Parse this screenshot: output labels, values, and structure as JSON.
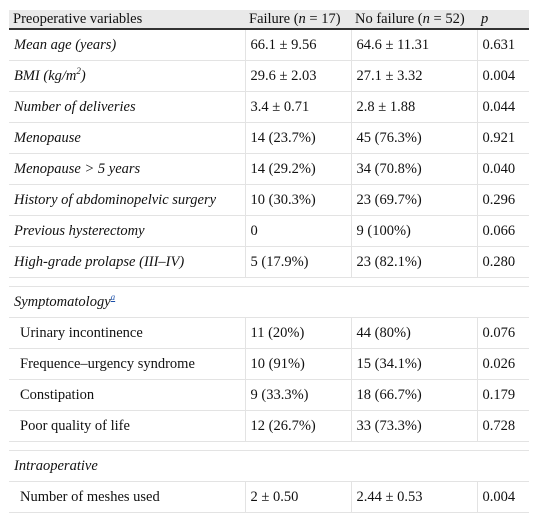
{
  "table": {
    "headers": [
      "Preoperative variables",
      "Failure (",
      "n",
      " = 17)",
      "No failure (",
      "n",
      " = 52)",
      "p"
    ],
    "rows": [
      {
        "label": "Mean age (years)",
        "failure": "66.1 ± 9.56",
        "no_failure": "64.6 ± 11.31",
        "p": "0.631"
      },
      {
        "label": "BMI (kg/m",
        "label_sup": "2",
        "label_end": ")",
        "failure": "29.6 ± 2.03",
        "no_failure": "27.1 ± 3.32",
        "p": "0.004"
      },
      {
        "label": "Number of deliveries",
        "failure": "3.4 ± 0.71",
        "no_failure": "2.8 ± 1.88",
        "p": "0.044"
      },
      {
        "label": "Menopause",
        "failure": "14 (23.7%)",
        "no_failure": "45 (76.3%)",
        "p": "0.921"
      },
      {
        "label": "Menopause > 5 years",
        "failure": "14 (29.2%)",
        "no_failure": "34 (70.8%)",
        "p": "0.040"
      },
      {
        "label": "History of abdominopelvic surgery",
        "failure": "10 (30.3%)",
        "no_failure": "23 (69.7%)",
        "p": "0.296"
      },
      {
        "label": "Previous hysterectomy",
        "failure": "0",
        "no_failure": "9 (100%)",
        "p": "0.066"
      },
      {
        "label": "High-grade prolapse (III–IV)",
        "failure": "5 (17.9%)",
        "no_failure": "23 (82.1%)",
        "p": "0.280"
      }
    ],
    "section_symptomatology": "Symptomatology",
    "section_symptomatology_note": "a",
    "symptom_rows": [
      {
        "label": "Urinary incontinence",
        "failure": "11 (20%)",
        "no_failure": "44 (80%)",
        "p": "0.076"
      },
      {
        "label": "Frequence–urgency syndrome",
        "failure": "10 (91%)",
        "no_failure": "15 (34.1%)",
        "p": "0.026"
      },
      {
        "label": "Constipation",
        "failure": "9 (33.3%)",
        "no_failure": "18 (66.7%)",
        "p": "0.179"
      },
      {
        "label": "Poor quality of life",
        "failure": "12 (26.7%)",
        "no_failure": "33 (73.3%)",
        "p": "0.728"
      }
    ],
    "section_intraoperative": "Intraoperative",
    "intra_rows": [
      {
        "label": "Number of meshes used",
        "failure": "2 ± 0.50",
        "no_failure": "2.44 ± 0.53",
        "p": "0.004"
      }
    ]
  }
}
